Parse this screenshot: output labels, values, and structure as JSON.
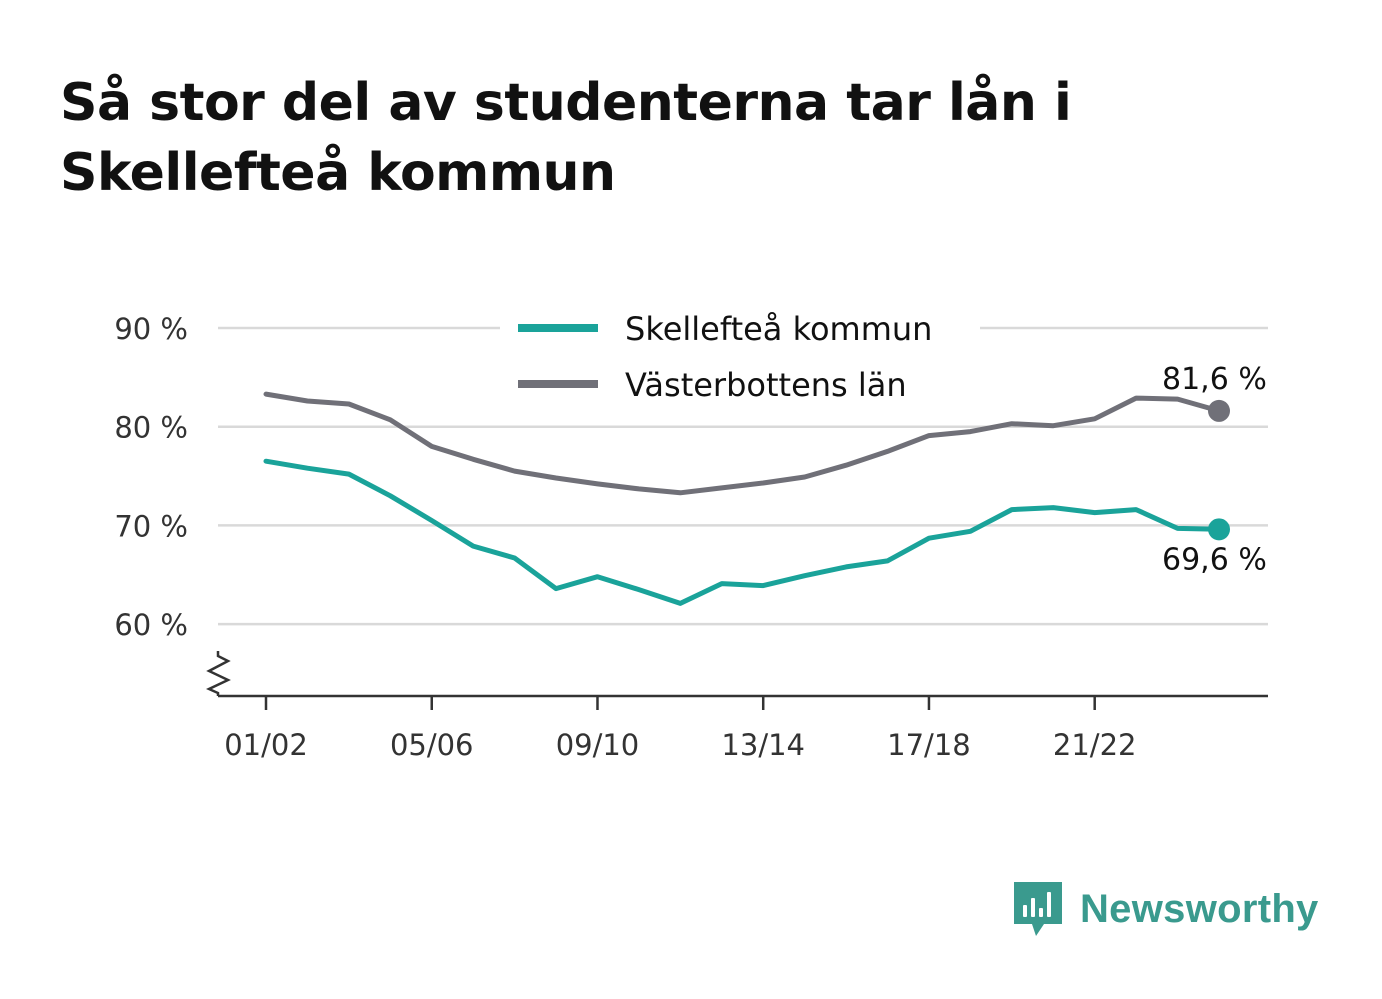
{
  "title": "Så stor del av studenterna tar lån i Skellefteå kommun",
  "brand": {
    "name": "Newsworthy",
    "icon": "newsworthy-logo-icon",
    "color": "#3a9a8e"
  },
  "chart_data": {
    "type": "line",
    "title": "Så stor del av studenterna tar lån i Skellefteå kommun",
    "xlabel": "",
    "ylabel": "",
    "x": [
      "01/02",
      "02/03",
      "03/04",
      "04/05",
      "05/06",
      "06/07",
      "07/08",
      "08/09",
      "09/10",
      "10/11",
      "11/12",
      "12/13",
      "13/14",
      "14/15",
      "15/16",
      "16/17",
      "17/18",
      "18/19",
      "19/20",
      "20/21",
      "21/22",
      "22/23",
      "23/24",
      "24/25"
    ],
    "x_tick_labels": [
      "01/02",
      "05/06",
      "09/10",
      "13/14",
      "17/18",
      "21/22"
    ],
    "y_tick_labels": [
      "90 %",
      "80 %",
      "70 %",
      "60 %"
    ],
    "y_ticks": [
      90,
      80,
      70,
      60
    ],
    "ylim": [
      53,
      90
    ],
    "y_axis_broken": true,
    "grid": true,
    "legend_position": "top-center",
    "series": [
      {
        "name": "Skellefteå kommun",
        "color": "#1aa39a",
        "values": [
          76.5,
          75.8,
          75.2,
          73.0,
          70.5,
          67.9,
          66.7,
          63.6,
          64.8,
          63.5,
          62.1,
          64.1,
          63.9,
          64.9,
          65.8,
          66.4,
          68.7,
          69.4,
          71.6,
          71.8,
          71.3,
          71.6,
          69.7,
          69.6
        ],
        "end_label": "69,6 %"
      },
      {
        "name": "Västerbottens län",
        "color": "#707078",
        "values": [
          83.3,
          82.6,
          82.3,
          80.7,
          78.0,
          76.7,
          75.5,
          74.8,
          74.2,
          73.7,
          73.3,
          73.8,
          74.3,
          74.9,
          76.1,
          77.5,
          79.1,
          79.5,
          80.3,
          80.1,
          80.8,
          82.9,
          82.8,
          81.6
        ],
        "end_label": "81,6 %"
      }
    ]
  }
}
